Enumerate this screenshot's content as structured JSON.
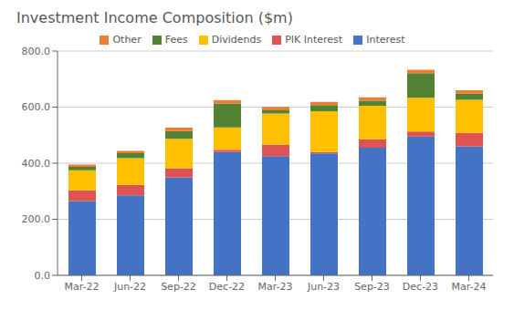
{
  "chart_data": {
    "type": "bar",
    "title": "Investment Income Composition ($m)",
    "categories": [
      "Mar-22",
      "Jun-22",
      "Sep-22",
      "Dec-22",
      "Mar-23",
      "Jun-23",
      "Sep-23",
      "Dec-23",
      "Mar-24"
    ],
    "series": [
      {
        "name": "Interest",
        "color": "#4472c4",
        "values": [
          265,
          285,
          350,
          440,
          425,
          435,
          455,
          495,
          460
        ]
      },
      {
        "name": "PIK Interest",
        "color": "#e05353",
        "values": [
          38,
          38,
          32,
          8,
          42,
          5,
          30,
          18,
          48
        ]
      },
      {
        "name": "Dividends",
        "color": "#ffc000",
        "values": [
          72,
          95,
          105,
          80,
          110,
          145,
          120,
          120,
          118
        ]
      },
      {
        "name": "Fees",
        "color": "#548235",
        "values": [
          12,
          18,
          28,
          85,
          12,
          22,
          18,
          88,
          22
        ]
      },
      {
        "name": "Other",
        "color": "#ed7d31",
        "values": [
          8,
          8,
          12,
          12,
          12,
          12,
          12,
          12,
          12
        ]
      }
    ],
    "stacked": true,
    "ylim": [
      0,
      800
    ],
    "yticks": [
      {
        "value": 0,
        "label": "0.0"
      },
      {
        "value": 200,
        "label": "200.0"
      },
      {
        "value": 400,
        "label": "400.0"
      },
      {
        "value": 600,
        "label": "600.0"
      },
      {
        "value": 800,
        "label": "800.0"
      }
    ],
    "grid": true,
    "legend": "top"
  }
}
